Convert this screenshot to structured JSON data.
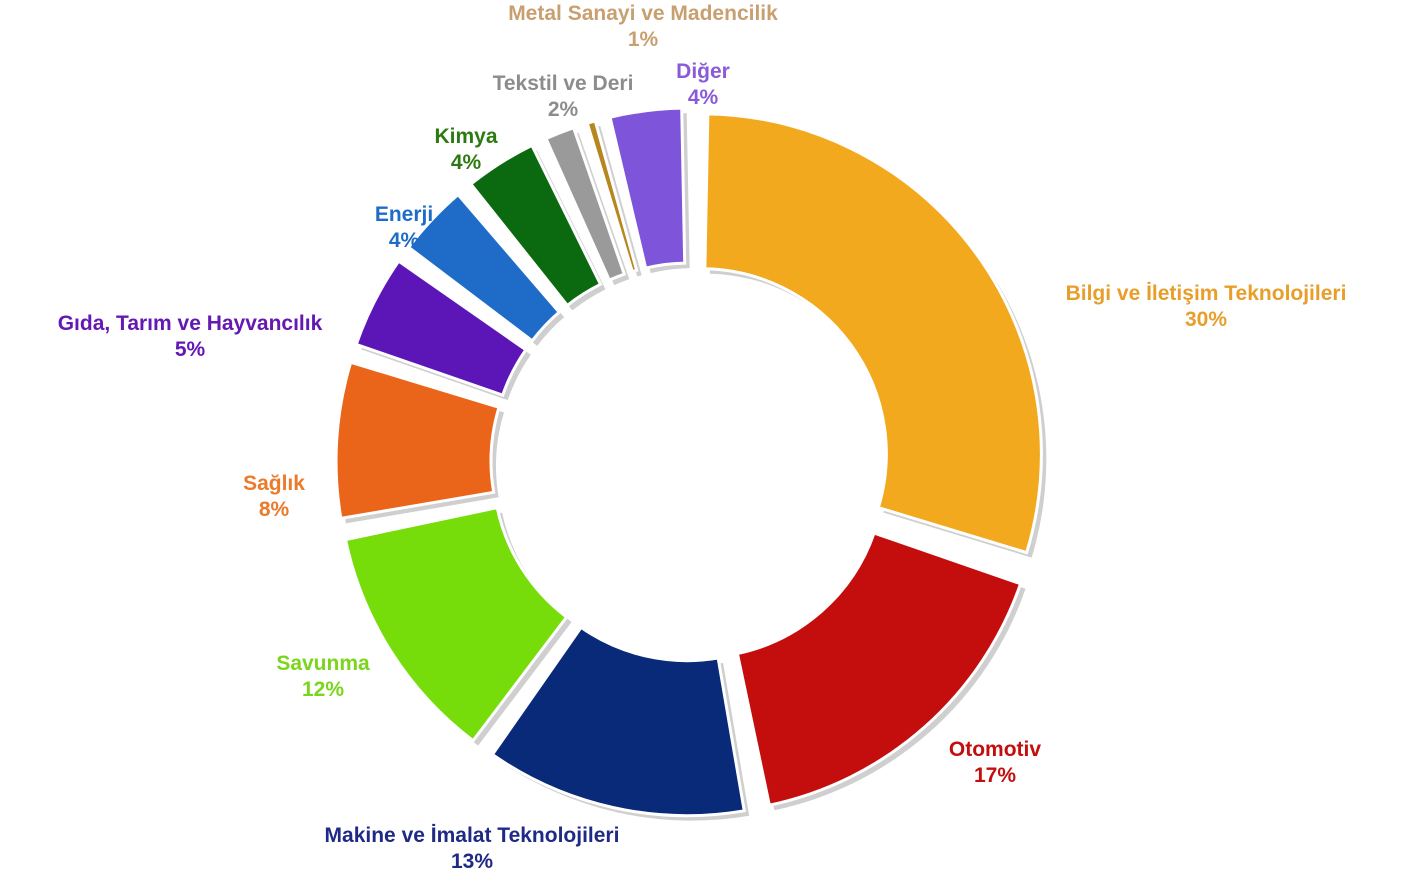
{
  "chart_data": {
    "type": "pie",
    "title": "",
    "series": [
      {
        "name": "Bilgi ve İletişim Teknolojileri",
        "value": 30,
        "percent_label": "30%",
        "color": "#F2A91E"
      },
      {
        "name": "Otomotiv",
        "value": 17,
        "percent_label": "17%",
        "color": "#C40E0E"
      },
      {
        "name": "Makine ve İmalat Teknolojileri",
        "value": 13,
        "percent_label": "13%",
        "color": "#082A79"
      },
      {
        "name": "Savunma",
        "value": 12,
        "percent_label": "12%",
        "color": "#76DC0A"
      },
      {
        "name": "Sağlık",
        "value": 8,
        "percent_label": "8%",
        "color": "#EA641A"
      },
      {
        "name": "Gıda, Tarım ve Hayvancılık",
        "value": 5,
        "percent_label": "5%",
        "color": "#5C16B8"
      },
      {
        "name": "Enerji",
        "value": 4,
        "percent_label": "4%",
        "color": "#1E6CC8"
      },
      {
        "name": "Kimya",
        "value": 4,
        "percent_label": "4%",
        "color": "#0B6A10"
      },
      {
        "name": "Tekstil ve Deri",
        "value": 2,
        "percent_label": "2%",
        "color": "#9A9A9A"
      },
      {
        "name": "Metal Sanayi ve Madencilik",
        "value": 1,
        "percent_label": "1%",
        "color": "#B8861E"
      },
      {
        "name": "Diğer",
        "value": 4,
        "percent_label": "4%",
        "color": "#7E54DA"
      }
    ],
    "style": "exploded-donut",
    "label_colors": {
      "Bilgi ve İletişim Teknolojileri": "#E89E2A",
      "Otomotiv": "#C40E0E",
      "Makine ve İmalat Teknolojileri": "#1F2A86",
      "Savunma": "#7AD61A",
      "Sağlık": "#EC7A2A",
      "Gıda, Tarım ve Hayvancılık": "#6418B4",
      "Enerji": "#1E6CC8",
      "Kimya": "#2E7A12",
      "Tekstil ve Deri": "#8C8C8C",
      "Metal Sanayi ve Madencilik": "#C8A070",
      "Diğer": "#8A5ADA"
    }
  }
}
